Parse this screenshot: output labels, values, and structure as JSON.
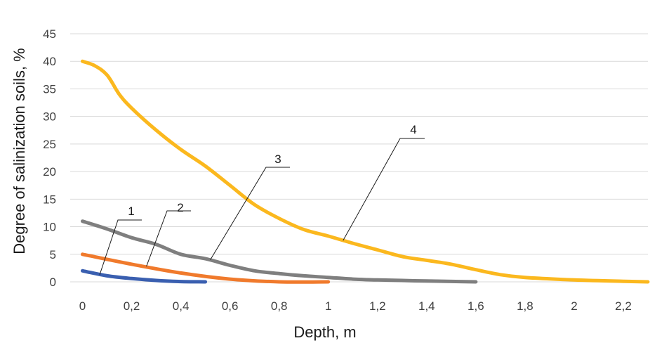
{
  "chart_data": {
    "type": "line",
    "title": "",
    "xlabel": "Depth, m",
    "ylabel": "Degree of salinization soils, %",
    "xlim": [
      -0.05,
      2.3
    ],
    "ylim": [
      0,
      45
    ],
    "x_ticks": [
      "0",
      "0,2",
      "0,4",
      "0,6",
      "0,8",
      "1",
      "1,2",
      "1,4",
      "1,6",
      "1,8",
      "2",
      "2,2"
    ],
    "x_tick_values": [
      0,
      0.2,
      0.4,
      0.6,
      0.8,
      1,
      1.2,
      1.4,
      1.6,
      1.8,
      2,
      2.2
    ],
    "y_ticks": [
      "0",
      "5",
      "10",
      "15",
      "20",
      "25",
      "30",
      "35",
      "40",
      "45"
    ],
    "y_tick_values": [
      0,
      5,
      10,
      15,
      20,
      25,
      30,
      35,
      40,
      45
    ],
    "grid": true,
    "legend": "none",
    "series": [
      {
        "label": "1",
        "color": "#3a5fb0",
        "points": [
          [
            0,
            2.0
          ],
          [
            0.1,
            1.1
          ],
          [
            0.2,
            0.6
          ],
          [
            0.3,
            0.25
          ],
          [
            0.4,
            0.05
          ],
          [
            0.5,
            0.0
          ]
        ]
      },
      {
        "label": "2",
        "color": "#f07a2c",
        "points": [
          [
            0,
            5.0
          ],
          [
            0.2,
            3.2
          ],
          [
            0.4,
            1.6
          ],
          [
            0.6,
            0.5
          ],
          [
            0.8,
            0.0
          ],
          [
            1.0,
            0.0
          ]
        ]
      },
      {
        "label": "3",
        "color": "#7f7f7f",
        "points": [
          [
            0,
            11.0
          ],
          [
            0.1,
            9.6
          ],
          [
            0.2,
            8.0
          ],
          [
            0.3,
            6.8
          ],
          [
            0.4,
            5.0
          ],
          [
            0.5,
            4.2
          ],
          [
            0.6,
            3.0
          ],
          [
            0.7,
            2.0
          ],
          [
            0.8,
            1.5
          ],
          [
            0.9,
            1.1
          ],
          [
            1.0,
            0.8
          ],
          [
            1.1,
            0.5
          ],
          [
            1.2,
            0.35
          ],
          [
            1.3,
            0.25
          ],
          [
            1.4,
            0.15
          ],
          [
            1.5,
            0.08
          ],
          [
            1.6,
            0.0
          ]
        ]
      },
      {
        "label": "4",
        "color": "#fbb81e",
        "points": [
          [
            0,
            40.0
          ],
          [
            0.05,
            39.2
          ],
          [
            0.1,
            37.5
          ],
          [
            0.15,
            34.0
          ],
          [
            0.2,
            31.5
          ],
          [
            0.3,
            27.5
          ],
          [
            0.4,
            24.0
          ],
          [
            0.5,
            21.0
          ],
          [
            0.6,
            17.5
          ],
          [
            0.7,
            14.0
          ],
          [
            0.8,
            11.5
          ],
          [
            0.9,
            9.5
          ],
          [
            1.0,
            8.3
          ],
          [
            1.1,
            7.0
          ],
          [
            1.2,
            5.8
          ],
          [
            1.3,
            4.6
          ],
          [
            1.4,
            3.9
          ],
          [
            1.5,
            3.2
          ],
          [
            1.6,
            2.2
          ],
          [
            1.7,
            1.3
          ],
          [
            1.8,
            0.8
          ],
          [
            2.0,
            0.35
          ],
          [
            2.2,
            0.1
          ],
          [
            2.3,
            0.0
          ]
        ]
      }
    ]
  }
}
